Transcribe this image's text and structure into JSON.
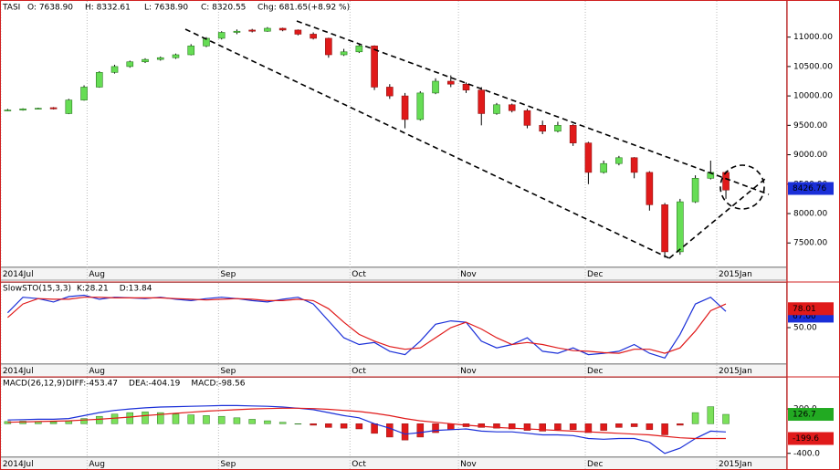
{
  "header": {
    "symbol": "TASI",
    "open": "O: 7638.90",
    "high": "H: 8332.61",
    "low": "L: 7638.90",
    "close": "C: 8320.55",
    "change": "Chg: 681.65(+8.92 %)"
  },
  "chart_data": [
    {
      "type": "candlestick",
      "xlim": [
        -0.5,
        51
      ],
      "ylim": [
        7100,
        11600
      ],
      "xticks": [
        {
          "value": -0.45,
          "label": "2014Jul"
        },
        {
          "value": 5.2,
          "label": "Aug"
        },
        {
          "value": 13.8,
          "label": "Sep"
        },
        {
          "value": 22.4,
          "label": "Oct"
        },
        {
          "value": 29.5,
          "label": "Nov"
        },
        {
          "value": 37.8,
          "label": "Dec"
        },
        {
          "value": 46.4,
          "label": "2015Jan"
        }
      ],
      "yticks": [
        {
          "value": 7500,
          "label": "7500.00"
        },
        {
          "value": 8000,
          "label": "8000.00"
        },
        {
          "value": 8500,
          "label": "8500.00"
        },
        {
          "value": 9000,
          "label": "9000.00"
        },
        {
          "value": 9500,
          "label": "9500.00"
        },
        {
          "value": 10000,
          "label": "10000.00"
        },
        {
          "value": 10500,
          "label": "10500.00"
        },
        {
          "value": 11000,
          "label": "11000.00"
        }
      ],
      "up_color": "#66dd55",
      "down_color": "#e01a1a",
      "open": [
        9750,
        9760,
        9780,
        9800,
        9700,
        9930,
        10150,
        10400,
        10500,
        10580,
        10620,
        10650,
        10700,
        10850,
        10980,
        11080,
        11120,
        11100,
        11150,
        11120,
        11050,
        10980,
        10700,
        10750,
        10850,
        10150,
        10000,
        9600,
        10050,
        10250,
        10200,
        10100,
        9700,
        9850,
        9750,
        9500,
        9400,
        9500,
        9200,
        8700,
        8850,
        8950,
        8700,
        8150,
        7350,
        8200,
        8600,
        8700
      ],
      "high": [
        9780,
        9790,
        9800,
        9810,
        9950,
        10180,
        10420,
        10530,
        10600,
        10640,
        10670,
        10720,
        10880,
        11000,
        11100,
        11130,
        11140,
        11170,
        11160,
        11130,
        11080,
        10990,
        10800,
        10880,
        10860,
        10200,
        10050,
        10080,
        10300,
        10350,
        10230,
        10150,
        9880,
        9870,
        9780,
        9580,
        9560,
        9520,
        9220,
        8900,
        8980,
        8960,
        8720,
        8180,
        8250,
        8650,
        8900,
        8720
      ],
      "low": [
        9740,
        9750,
        9770,
        9770,
        9690,
        9920,
        10140,
        10380,
        10480,
        10560,
        10600,
        10630,
        10690,
        10830,
        10960,
        11050,
        11080,
        11090,
        11100,
        11030,
        10960,
        10650,
        10680,
        10730,
        10100,
        9950,
        9450,
        9580,
        10030,
        10150,
        10050,
        9500,
        9680,
        9720,
        9450,
        9350,
        9380,
        9150,
        8500,
        8680,
        8820,
        8600,
        8050,
        7250,
        7300,
        8180,
        8580,
        8250
      ],
      "close": [
        9760,
        9780,
        9790,
        9780,
        9930,
        10150,
        10400,
        10500,
        10580,
        10620,
        10650,
        10700,
        10850,
        10980,
        11080,
        11100,
        11100,
        11150,
        11120,
        11050,
        10980,
        10700,
        10750,
        10850,
        10150,
        10000,
        9600,
        10050,
        10250,
        10200,
        10100,
        9700,
        9850,
        9750,
        9500,
        9400,
        9500,
        9200,
        8700,
        8850,
        8950,
        8700,
        8150,
        7350,
        8200,
        8600,
        8700,
        8400
      ],
      "markers": [
        {
          "value": 8426.76,
          "color": "#1a2fd8"
        }
      ]
    },
    {
      "type": "line",
      "title": "SlowSTO(15,3,3)",
      "ylim": [
        0,
        100
      ],
      "yticks": [
        {
          "value": 50,
          "label": "50.00"
        }
      ],
      "series": [
        {
          "name": "K:28.21",
          "color": "#1a2fd8",
          "values": [
            72,
            95,
            93,
            88,
            96,
            98,
            92,
            95,
            94,
            93,
            95,
            92,
            90,
            93,
            95,
            93,
            90,
            88,
            92,
            95,
            85,
            60,
            35,
            25,
            28,
            15,
            10,
            30,
            55,
            60,
            58,
            30,
            20,
            25,
            35,
            15,
            12,
            20,
            10,
            12,
            15,
            25,
            12,
            5,
            40,
            85,
            95,
            74
          ]
        },
        {
          "name": "D:13.84",
          "color": "#e01a1a",
          "values": [
            65,
            85,
            93,
            92,
            92,
            95,
            95,
            94,
            94,
            94,
            94,
            93,
            92,
            91,
            92,
            93,
            92,
            90,
            90,
            92,
            90,
            78,
            58,
            40,
            30,
            22,
            18,
            20,
            35,
            50,
            58,
            48,
            35,
            25,
            28,
            25,
            20,
            16,
            15,
            13,
            12,
            18,
            18,
            12,
            20,
            45,
            75,
            85
          ]
        }
      ],
      "markers": [
        {
          "value": 67,
          "label": "67.00",
          "color": "#1a2fd8"
        },
        {
          "value": 78.01,
          "color": "#e01a1a"
        }
      ]
    },
    {
      "type": "macd",
      "title": "MACD(26,12,9)",
      "ylim": [
        -440,
        620
      ],
      "yticks": [
        {
          "value": 200,
          "label": "200.0"
        },
        {
          "value": -400,
          "label": "-400.0"
        }
      ],
      "series": [
        {
          "name": "DIFF:-453.47",
          "color": "#1a2fd8",
          "values": [
            50,
            55,
            60,
            60,
            70,
            110,
            150,
            180,
            200,
            215,
            225,
            230,
            235,
            240,
            245,
            245,
            240,
            235,
            225,
            210,
            190,
            150,
            110,
            80,
            0,
            -60,
            -140,
            -120,
            -90,
            -80,
            -70,
            -100,
            -110,
            -110,
            -130,
            -150,
            -150,
            -160,
            -200,
            -210,
            -200,
            -200,
            -250,
            -400,
            -330,
            -200,
            -100,
            -111
          ]
        },
        {
          "name": "DEA:-404.19",
          "color": "#e01a1a",
          "values": [
            20,
            25,
            30,
            35,
            40,
            50,
            60,
            75,
            90,
            110,
            125,
            140,
            155,
            170,
            180,
            190,
            200,
            205,
            210,
            210,
            205,
            195,
            180,
            165,
            140,
            110,
            70,
            40,
            20,
            0,
            -20,
            -35,
            -50,
            -60,
            -70,
            -80,
            -90,
            -100,
            -110,
            -120,
            -130,
            -140,
            -150,
            -170,
            -190,
            -200,
            -200,
            -199.6
          ]
        },
        {
          "name": "MACD:-98.56",
          "color": "#22aa22",
          "bars": true,
          "values": [
            30,
            35,
            30,
            25,
            40,
            70,
            100,
            130,
            150,
            160,
            150,
            130,
            120,
            110,
            100,
            80,
            60,
            40,
            20,
            0,
            -20,
            -50,
            -60,
            -70,
            -130,
            -180,
            -220,
            -180,
            -120,
            -80,
            -40,
            -50,
            -60,
            -70,
            -90,
            -100,
            -80,
            -80,
            -120,
            -90,
            -50,
            -40,
            -80,
            -150,
            -20,
            150,
            230,
            126.7
          ]
        }
      ],
      "markers": [
        {
          "value": 126.7,
          "color": "#22aa22"
        },
        {
          "value": -199.6,
          "color": "#e01a1a"
        }
      ]
    }
  ]
}
